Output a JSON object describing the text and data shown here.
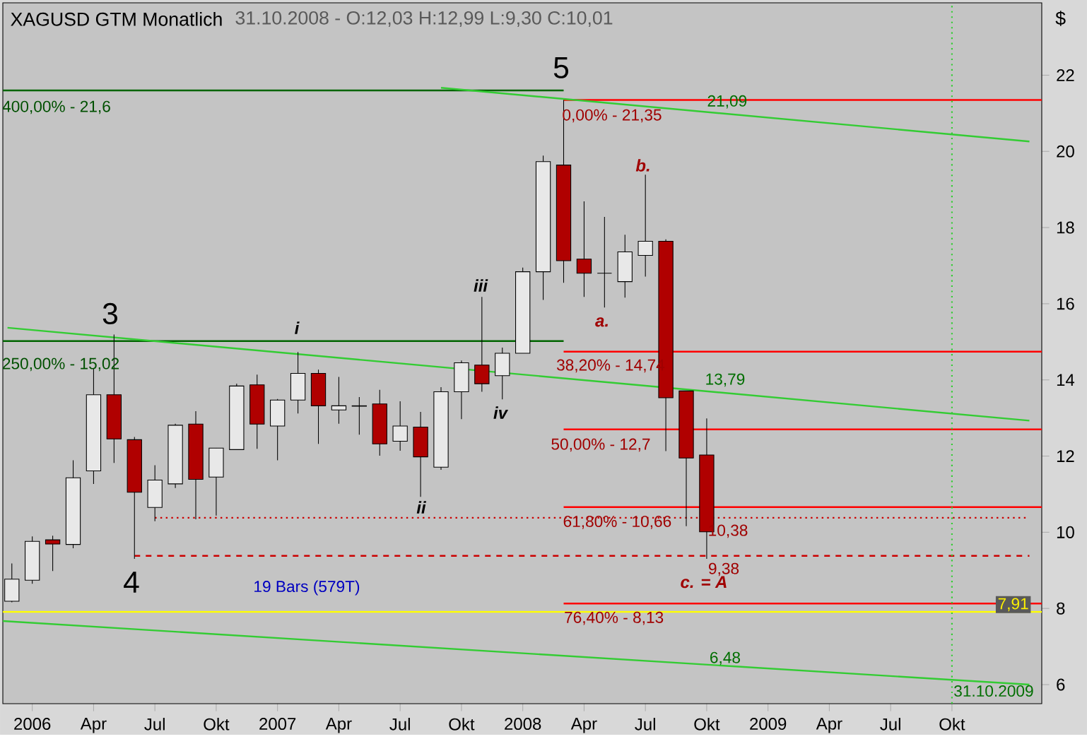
{
  "chart_data": {
    "type": "candlestick",
    "title": "XAGUSD GTM Monatlich",
    "subtitle": "31.10.2008 - O:12,03 H:12,99 L:9,30 C:10,01",
    "ylabel": "$",
    "x": [
      "2005-12",
      "2006-01",
      "2006-02",
      "2006-03",
      "2006-04",
      "2006-05",
      "2006-06",
      "2006-07",
      "2006-08",
      "2006-09",
      "2006-10",
      "2006-11",
      "2006-12",
      "2007-01",
      "2007-02",
      "2007-03",
      "2007-04",
      "2007-05",
      "2007-06",
      "2007-07",
      "2007-08",
      "2007-09",
      "2007-10",
      "2007-11",
      "2007-12",
      "2008-01",
      "2008-02",
      "2008-03",
      "2008-04",
      "2008-05",
      "2008-06",
      "2008-07",
      "2008-08",
      "2008-09",
      "2008-10"
    ],
    "ohlc": [
      [
        8.19,
        9.18,
        8.16,
        8.77
      ],
      [
        8.74,
        9.89,
        8.65,
        9.76
      ],
      [
        9.8,
        9.91,
        8.98,
        9.69
      ],
      [
        9.68,
        11.89,
        9.58,
        11.43
      ],
      [
        11.61,
        14.3,
        11.27,
        13.61
      ],
      [
        13.61,
        15.19,
        11.82,
        12.45
      ],
      [
        12.43,
        12.5,
        9.3,
        11.05
      ],
      [
        10.65,
        11.76,
        10.29,
        11.37
      ],
      [
        11.27,
        12.85,
        11.16,
        12.81
      ],
      [
        12.84,
        13.18,
        10.34,
        11.39
      ],
      [
        11.45,
        12.21,
        10.44,
        12.21
      ],
      [
        12.17,
        13.9,
        12.17,
        13.84
      ],
      [
        13.87,
        14.14,
        12.19,
        12.84
      ],
      [
        12.79,
        13.5,
        11.89,
        13.47
      ],
      [
        13.47,
        14.73,
        13.12,
        14.17
      ],
      [
        14.17,
        14.27,
        12.32,
        13.32
      ],
      [
        13.21,
        14.08,
        12.85,
        13.32
      ],
      [
        13.32,
        13.55,
        12.56,
        13.31
      ],
      [
        13.37,
        13.74,
        12.01,
        12.32
      ],
      [
        12.39,
        13.44,
        12.14,
        12.79
      ],
      [
        12.76,
        13.16,
        10.93,
        11.98
      ],
      [
        11.71,
        13.81,
        11.64,
        13.69
      ],
      [
        13.69,
        14.51,
        12.97,
        14.45
      ],
      [
        14.39,
        16.18,
        13.69,
        13.9
      ],
      [
        14.11,
        14.85,
        13.49,
        14.7
      ],
      [
        14.7,
        16.95,
        14.7,
        16.84
      ],
      [
        16.84,
        19.89,
        16.1,
        19.73
      ],
      [
        19.64,
        21.35,
        16.55,
        17.13
      ],
      [
        17.17,
        18.69,
        16.18,
        16.8
      ],
      [
        16.8,
        18.28,
        15.9,
        16.8
      ],
      [
        16.58,
        17.81,
        16.16,
        17.36
      ],
      [
        17.27,
        19.39,
        16.71,
        17.64
      ],
      [
        17.64,
        17.69,
        12.13,
        13.53
      ],
      [
        13.71,
        13.71,
        10.16,
        11.95
      ],
      [
        12.03,
        12.99,
        9.3,
        10.01
      ]
    ],
    "series": [
      {
        "type": "line",
        "color": "#006400",
        "x": [
          "2005-11-18",
          "2008-03"
        ],
        "values": [
          21.6,
          21.6
        ]
      },
      {
        "type": "line",
        "color": "#006400",
        "x": [
          "2005-11-18",
          "2008-03"
        ],
        "values": [
          15.02,
          15.02
        ]
      },
      {
        "type": "line",
        "color": "#ff0000",
        "x": [
          "2008-03",
          "2010-02-13"
        ],
        "values": [
          21.35,
          21.35
        ]
      },
      {
        "type": "line",
        "color": "#ff0000",
        "x": [
          "2008-03",
          "2010-02-13"
        ],
        "values": [
          14.74,
          14.74
        ]
      },
      {
        "type": "line",
        "color": "#ff0000",
        "x": [
          "2008-03",
          "2010-02-13"
        ],
        "values": [
          12.7,
          12.7
        ]
      },
      {
        "type": "line",
        "color": "#ff0000",
        "x": [
          "2008-03",
          "2010-02-13"
        ],
        "values": [
          10.66,
          10.66
        ]
      },
      {
        "type": "line",
        "color": "#ff0000",
        "x": [
          "2008-03",
          "2010-02-13"
        ],
        "values": [
          8.13,
          8.13
        ]
      },
      {
        "type": "line",
        "color": "#cc0000",
        "line_style": "dotted",
        "x": [
          "2006-07",
          "2010-01-25"
        ],
        "values": [
          10.38,
          10.38
        ]
      },
      {
        "type": "line",
        "color": "#cc0000",
        "line_style": "dashed",
        "x": [
          "2006-06",
          "2010-01-25"
        ],
        "values": [
          9.38,
          9.38
        ]
      },
      {
        "type": "line",
        "color": "#ffff00",
        "x": [
          "2005-11-18",
          "2010-02-13"
        ],
        "values": [
          7.91,
          7.91
        ]
      },
      {
        "type": "line",
        "color": "#33cc33",
        "x": [
          "2007-09",
          "2010-01-25"
        ],
        "values": [
          21.67,
          20.26
        ]
      },
      {
        "type": "line",
        "color": "#33cc33",
        "x": [
          "2005-11-25",
          "2010-01-25"
        ],
        "values": [
          15.37,
          12.93
        ]
      },
      {
        "type": "line",
        "color": "#33cc33",
        "x": [
          "2005-11-18",
          "2010-01-25"
        ],
        "values": [
          7.67,
          6.0
        ]
      }
    ],
    "ref_lines": [
      {
        "axis": "x",
        "value": "2009-10",
        "color": "#33cc33",
        "line_style": "dotted"
      }
    ],
    "annotations": [
      "3",
      "4",
      "5",
      "i",
      "ii",
      "iii",
      "iv",
      "a.",
      "b.",
      "c. = A",
      "400,00% - 21,6",
      "250,00% - 15,02",
      "0,00% - 21,35",
      "38,20% - 14,74",
      "50,00% - 12,7",
      {
        "text": "61,80% - 10,66",
        "x": "2008-05-20",
        "y": 10.26
      },
      {
        "text": "76,40% - 8,13",
        "x": "2008-05-15",
        "y": 7.74
      },
      {
        "text": "21,09",
        "x": "2008-11",
        "y": 21.3
      },
      "13,79",
      "6,48",
      {
        "text": "7,91",
        "x": "2010-01",
        "y": 8.1
      },
      "31.10.2009",
      "10,38",
      "9,38",
      "19 Bars (579T)"
    ],
    "xlim": [
      "2005-11-18",
      "2010-02-13"
    ],
    "ylim": [
      5.5,
      23.9
    ],
    "xticks": [
      {
        "value": "2006-01",
        "label": "2006"
      },
      {
        "value": "2006-04",
        "label": "Apr"
      },
      {
        "value": "2006-07",
        "label": "Jul"
      },
      {
        "value": "2006-10",
        "label": "Okt"
      },
      {
        "value": "2007-01",
        "label": "2007"
      },
      {
        "value": "2007-04",
        "label": "Apr"
      },
      {
        "value": "2007-07",
        "label": "Jul"
      },
      {
        "value": "2007-10",
        "label": "Okt"
      },
      {
        "value": "2008-01",
        "label": "2008"
      },
      {
        "value": "2008-04",
        "label": "Apr"
      },
      {
        "value": "2008-07",
        "label": "Jul"
      },
      {
        "value": "2008-10",
        "label": "Okt"
      },
      {
        "value": "2009-01",
        "label": "2009"
      },
      {
        "value": "2009-04",
        "label": "Apr"
      },
      {
        "value": "2009-07",
        "label": "Jul"
      },
      {
        "value": "2009-10",
        "label": "Okt"
      }
    ],
    "yticks": [
      6,
      8,
      10,
      12,
      14,
      16,
      18,
      20,
      22
    ],
    "grid": false
  }
}
